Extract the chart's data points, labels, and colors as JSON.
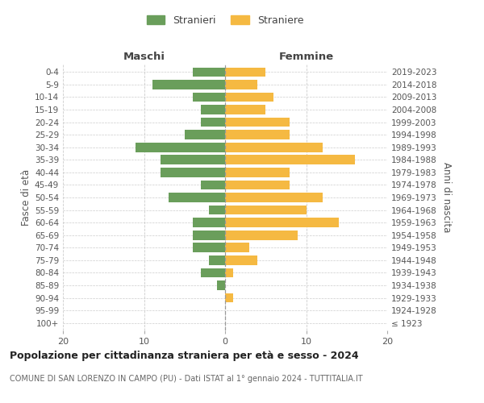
{
  "age_groups": [
    "100+",
    "95-99",
    "90-94",
    "85-89",
    "80-84",
    "75-79",
    "70-74",
    "65-69",
    "60-64",
    "55-59",
    "50-54",
    "45-49",
    "40-44",
    "35-39",
    "30-34",
    "25-29",
    "20-24",
    "15-19",
    "10-14",
    "5-9",
    "0-4"
  ],
  "birth_years": [
    "≤ 1923",
    "1924-1928",
    "1929-1933",
    "1934-1938",
    "1939-1943",
    "1944-1948",
    "1949-1953",
    "1954-1958",
    "1959-1963",
    "1964-1968",
    "1969-1973",
    "1974-1978",
    "1979-1983",
    "1984-1988",
    "1989-1993",
    "1994-1998",
    "1999-2003",
    "2004-2008",
    "2009-2013",
    "2014-2018",
    "2019-2023"
  ],
  "maschi": [
    0,
    0,
    0,
    1,
    3,
    2,
    4,
    4,
    4,
    2,
    7,
    3,
    8,
    8,
    11,
    5,
    3,
    3,
    4,
    9,
    4
  ],
  "femmine": [
    0,
    0,
    1,
    0,
    1,
    4,
    3,
    9,
    14,
    10,
    12,
    8,
    8,
    16,
    12,
    8,
    8,
    5,
    6,
    4,
    5
  ],
  "maschi_color": "#6a9e5b",
  "femmine_color": "#f5b942",
  "grid_color": "#cccccc",
  "title": "Popolazione per cittadinanza straniera per età e sesso - 2024",
  "subtitle": "COMUNE DI SAN LORENZO IN CAMPO (PU) - Dati ISTAT al 1° gennaio 2024 - TUTTITALIA.IT",
  "xlabel_left": "Maschi",
  "xlabel_right": "Femmine",
  "ylabel_left": "Fasce di età",
  "ylabel_right": "Anni di nascita",
  "legend_stranieri": "Stranieri",
  "legend_straniere": "Straniere",
  "xlim": 20,
  "bar_height": 0.75
}
